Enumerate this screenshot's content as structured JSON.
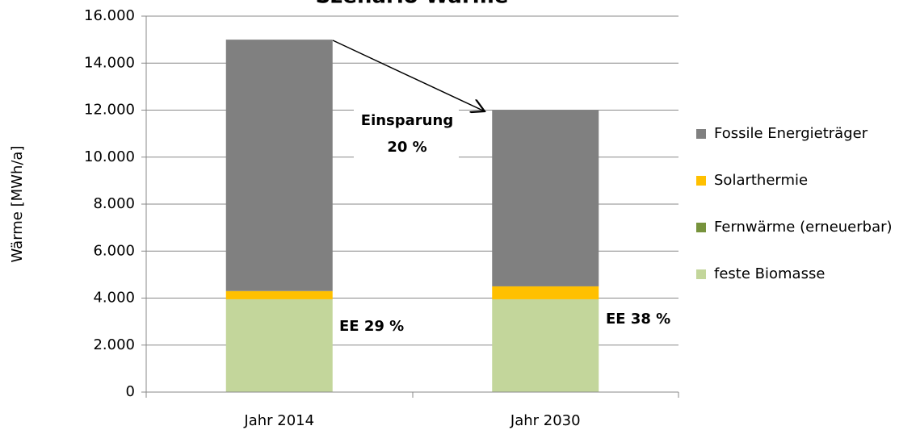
{
  "chart_data": {
    "type": "stacked_bar",
    "title": "Szenario Wärme",
    "y_label": "Wärme [MWh/a]",
    "categories": [
      "Jahr 2014",
      "Jahr 2030"
    ],
    "series": [
      {
        "name": "feste Biomasse",
        "color": "#c3d69b",
        "values": [
          3950,
          3950
        ]
      },
      {
        "name": "Fernwärme (erneuerbar)",
        "color": "#77933c",
        "values": [
          0,
          0
        ]
      },
      {
        "name": "Solarthermie",
        "color": "#ffc000",
        "values": [
          350,
          550
        ]
      },
      {
        "name": "Fossile Energieträger",
        "color": "#808080",
        "values": [
          10700,
          7500
        ]
      }
    ],
    "ylim": [
      0,
      16000
    ],
    "yticks": [
      0,
      {
        "value": 2000,
        "label": "2.000"
      },
      {
        "value": 4000,
        "label": "4.000"
      },
      {
        "value": 6000,
        "label": "6.000"
      },
      {
        "value": 8000,
        "label": "8.000"
      },
      {
        "value": 10000,
        "label": "10.000"
      },
      {
        "value": 12000,
        "label": "12.000"
      },
      {
        "value": 14000,
        "label": "14.000"
      },
      {
        "value": 16000,
        "label": "16.000"
      }
    ],
    "grid": true,
    "legend": "right",
    "annotations": {
      "savings": [
        "Einsparung",
        "20 %"
      ],
      "ee": [
        "EE 29 %",
        "EE 38 %"
      ]
    }
  }
}
